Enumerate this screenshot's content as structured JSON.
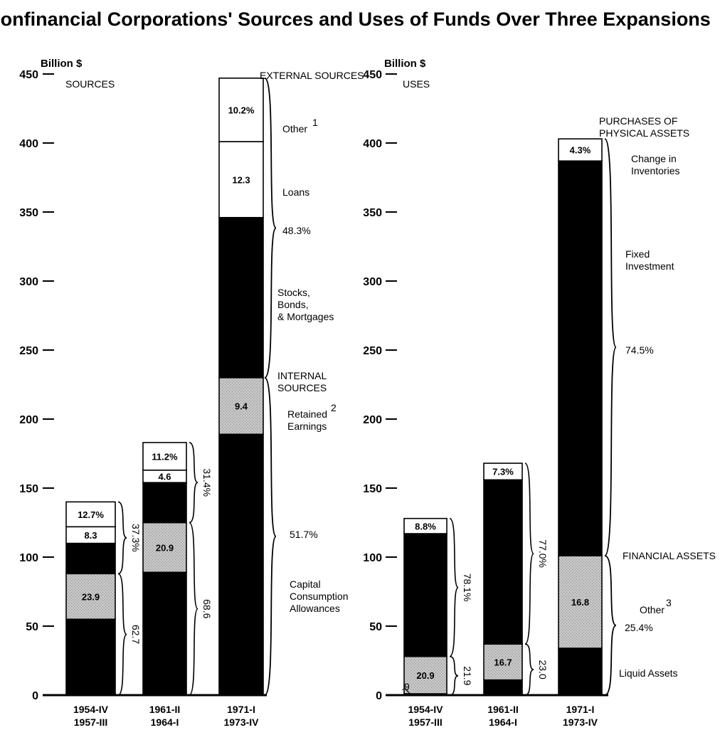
{
  "chart_data": [
    {
      "type": "bar",
      "stacked": true,
      "title": "Nonfinancial Corporations' Sources and Uses of Funds Over Three Expansions",
      "panel_label": "SOURCES",
      "ylabel": "Billion $",
      "ylim": [
        0,
        450
      ],
      "yticks": [
        "0",
        "50",
        "100",
        "150",
        "200",
        "250",
        "300",
        "350",
        "400",
        "450"
      ],
      "categories": [
        [
          "1954-IV",
          "1957-III"
        ],
        [
          "1961-II",
          "1964-I"
        ],
        [
          "1971-I",
          "1973-IV"
        ]
      ],
      "series": [
        {
          "name": "Capital Consumption Allowances",
          "color": "#000000",
          "values": [
            55,
            89,
            189
          ]
        },
        {
          "name": "Retained Earnings",
          "color": "#bdbdbd",
          "values": [
            33,
            36,
            41
          ]
        },
        {
          "name": "Stocks, Bonds, & Mortgages",
          "color": "#000000",
          "values": [
            22,
            29,
            116
          ]
        },
        {
          "name": "Loans",
          "color": "#ffffff",
          "values": [
            12,
            9,
            55
          ]
        },
        {
          "name": "Other",
          "color": "#ffffff",
          "values": [
            18,
            20,
            46
          ]
        }
      ],
      "segment_labels": [
        [
          "",
          "23.9",
          "",
          "8.3",
          "12.7%"
        ],
        [
          "",
          "20.9",
          "",
          "4.6",
          "11.2%"
        ],
        [
          "",
          "9.4",
          "",
          "12.3",
          "10.2%"
        ]
      ],
      "bracket_labels": [
        {
          "upper": "37.3%",
          "lower": "62.7"
        },
        {
          "upper": "31.4%",
          "lower": "68.6"
        }
      ],
      "annotations": {
        "external_header": "EXTERNAL SOURCES",
        "other": "Other",
        "other_note": "1",
        "loans": "Loans",
        "external_pct": "48.3%",
        "stocks": [
          "Stocks,",
          "Bonds,",
          "& Mortgages"
        ],
        "internal_header": [
          "INTERNAL",
          "SOURCES"
        ],
        "retained": [
          "Retained",
          "Earnings"
        ],
        "retained_note": "2",
        "internal_pct": "51.7%",
        "capital": [
          "Capital",
          "Consumption",
          "Allowances"
        ]
      }
    },
    {
      "type": "bar",
      "stacked": true,
      "panel_label": "USES",
      "ylabel": "Billion $",
      "ylim": [
        0,
        450
      ],
      "yticks": [
        "0",
        "50",
        "100",
        "150",
        "200",
        "250",
        "300",
        "350",
        "400",
        "450"
      ],
      "categories": [
        [
          "1954-IV",
          "1957-III"
        ],
        [
          "1961-II",
          "1964-I"
        ],
        [
          "1971-I",
          "1973-IV"
        ]
      ],
      "series": [
        {
          "name": "Liquid Assets",
          "color": "#000000",
          "values": [
            1,
            11,
            34
          ]
        },
        {
          "name": "Other",
          "color": "#bdbdbd",
          "values": [
            27,
            26,
            67
          ]
        },
        {
          "name": "Fixed Investment",
          "color": "#000000",
          "values": [
            89,
            119,
            286
          ]
        },
        {
          "name": "Change in Inventories",
          "color": "#ffffff",
          "values": [
            11,
            12,
            16
          ]
        }
      ],
      "segment_labels": [
        [
          "",
          "20.9",
          "",
          "8.8%"
        ],
        [
          "",
          "16.7",
          "",
          "7.3%"
        ],
        [
          "",
          "16.8",
          "",
          "4.3%"
        ]
      ],
      "small_marker_label": ".9",
      "bracket_labels": [
        {
          "upper": "78.1%",
          "lower": "21.9"
        },
        {
          "upper": "77.0%",
          "lower": "23.0"
        }
      ],
      "annotations": {
        "physical_header": [
          "PURCHASES OF",
          "PHYSICAL ASSETS"
        ],
        "inventories": [
          "Change in",
          "Inventories"
        ],
        "fixed": [
          "Fixed",
          "Investment"
        ],
        "physical_pct": "74.5%",
        "financial_header": "FINANCIAL ASSETS",
        "other": "Other",
        "other_note": "3",
        "financial_pct": "25.4%",
        "liquid": "Liquid Assets"
      }
    }
  ]
}
